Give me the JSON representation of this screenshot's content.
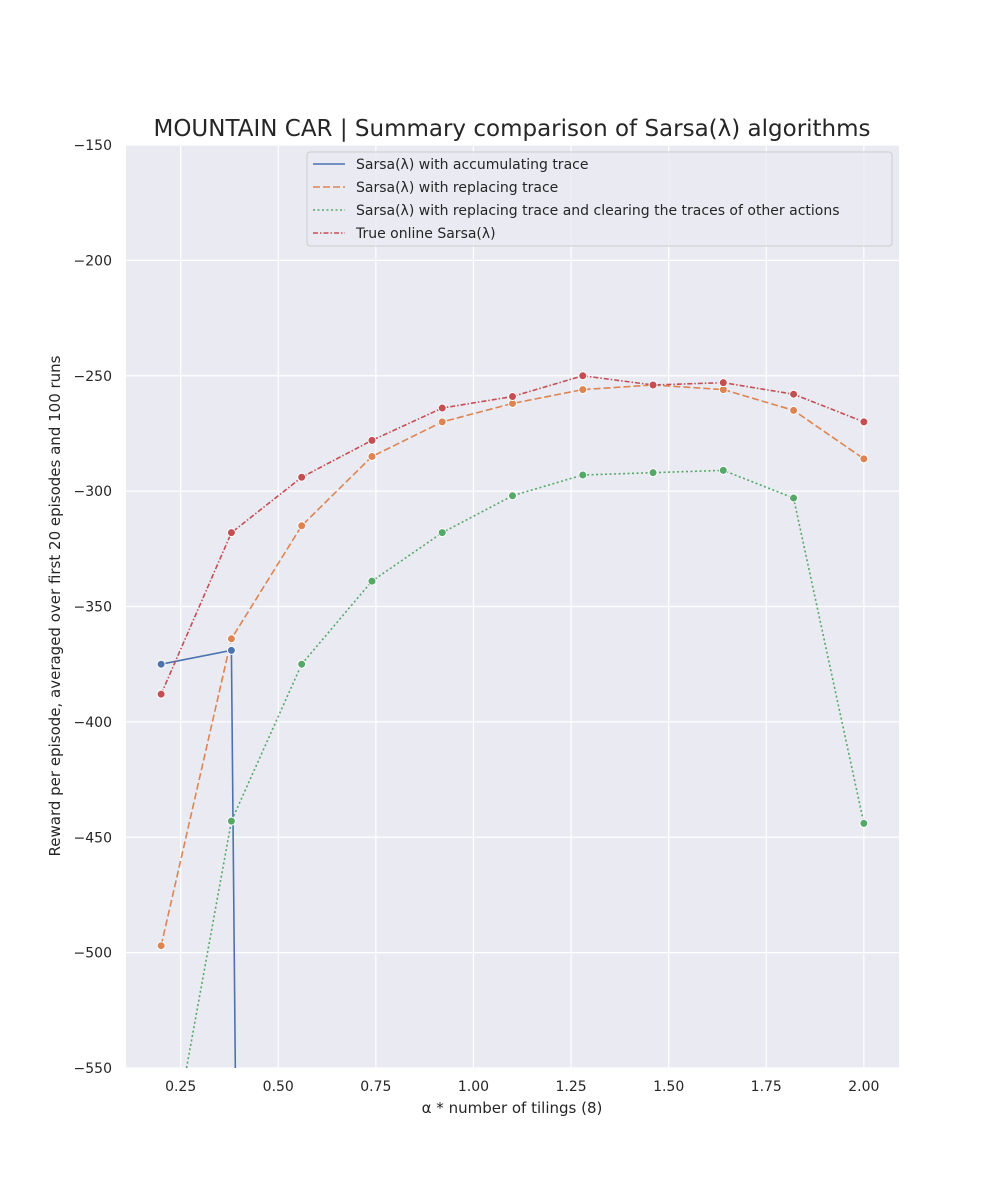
{
  "chart_data": {
    "type": "line",
    "title": "MOUNTAIN CAR | Summary comparison of Sarsa(λ) algorithms",
    "xlabel": "α * number of tilings (8)",
    "ylabel": "Reward per episode, averaged over first 20 episodes and 100 runs",
    "xlim": [
      0.11,
      2.09
    ],
    "ylim": [
      -550,
      -150
    ],
    "xticks": [
      0.25,
      0.5,
      0.75,
      1.0,
      1.25,
      1.5,
      1.75,
      2.0
    ],
    "xtick_labels": [
      "0.25",
      "0.50",
      "0.75",
      "1.00",
      "1.25",
      "1.50",
      "1.75",
      "2.00"
    ],
    "yticks": [
      -550,
      -500,
      -450,
      -400,
      -350,
      -300,
      -250,
      -200,
      -150
    ],
    "ytick_labels": [
      "−550",
      "−500",
      "−450",
      "−400",
      "−350",
      "−300",
      "−250",
      "−200",
      "−150"
    ],
    "grid": true,
    "legend_position": "top-right",
    "series": [
      {
        "name": "Sarsa(λ) with accumulating trace",
        "color": "#4c72b0",
        "dash": "solid",
        "x": [
          0.2,
          0.38,
          0.39
        ],
        "y": [
          -375,
          -369,
          -550
        ],
        "markers": [
          [
            0.2,
            -375
          ],
          [
            0.38,
            -369
          ]
        ]
      },
      {
        "name": "Sarsa(λ) with replacing trace",
        "color": "#dd8452",
        "dash": "dashed",
        "x": [
          0.2,
          0.38,
          0.56,
          0.74,
          0.92,
          1.1,
          1.28,
          1.46,
          1.64,
          1.82,
          2.0
        ],
        "y": [
          -497,
          -364,
          -315,
          -285,
          -270,
          -262,
          -256,
          -254,
          -256,
          -265,
          -286
        ],
        "markers": [
          [
            0.2,
            -497
          ],
          [
            0.38,
            -364
          ],
          [
            0.56,
            -315
          ],
          [
            0.74,
            -285
          ],
          [
            0.92,
            -270
          ],
          [
            1.1,
            -262
          ],
          [
            1.28,
            -256
          ],
          [
            1.46,
            -254
          ],
          [
            1.64,
            -256
          ],
          [
            1.82,
            -265
          ],
          [
            2.0,
            -286
          ]
        ]
      },
      {
        "name": "Sarsa(λ) with replacing trace and clearing the traces of other actions",
        "color": "#55a868",
        "dash": "dotted",
        "x": [
          0.265,
          0.38,
          0.56,
          0.74,
          0.92,
          1.1,
          1.28,
          1.46,
          1.64,
          1.82,
          2.0
        ],
        "y": [
          -550,
          -443,
          -375,
          -339,
          -318,
          -302,
          -293,
          -292,
          -291,
          -303,
          -444
        ],
        "markers": [
          [
            0.38,
            -443
          ],
          [
            0.56,
            -375
          ],
          [
            0.74,
            -339
          ],
          [
            0.92,
            -318
          ],
          [
            1.1,
            -302
          ],
          [
            1.28,
            -293
          ],
          [
            1.46,
            -292
          ],
          [
            1.64,
            -291
          ],
          [
            1.82,
            -303
          ],
          [
            2.0,
            -444
          ]
        ]
      },
      {
        "name": "True online Sarsa(λ)",
        "color": "#c44e52",
        "dash": "dashdot",
        "x": [
          0.2,
          0.38,
          0.56,
          0.74,
          0.92,
          1.1,
          1.28,
          1.46,
          1.64,
          1.82,
          2.0
        ],
        "y": [
          -388,
          -318,
          -294,
          -278,
          -264,
          -259,
          -250,
          -254,
          -253,
          -258,
          -270
        ],
        "markers": [
          [
            0.2,
            -388
          ],
          [
            0.38,
            -318
          ],
          [
            0.56,
            -294
          ],
          [
            0.74,
            -278
          ],
          [
            0.92,
            -264
          ],
          [
            1.1,
            -259
          ],
          [
            1.28,
            -250
          ],
          [
            1.46,
            -254
          ],
          [
            1.64,
            -253
          ],
          [
            1.82,
            -258
          ],
          [
            2.0,
            -270
          ]
        ]
      }
    ]
  }
}
